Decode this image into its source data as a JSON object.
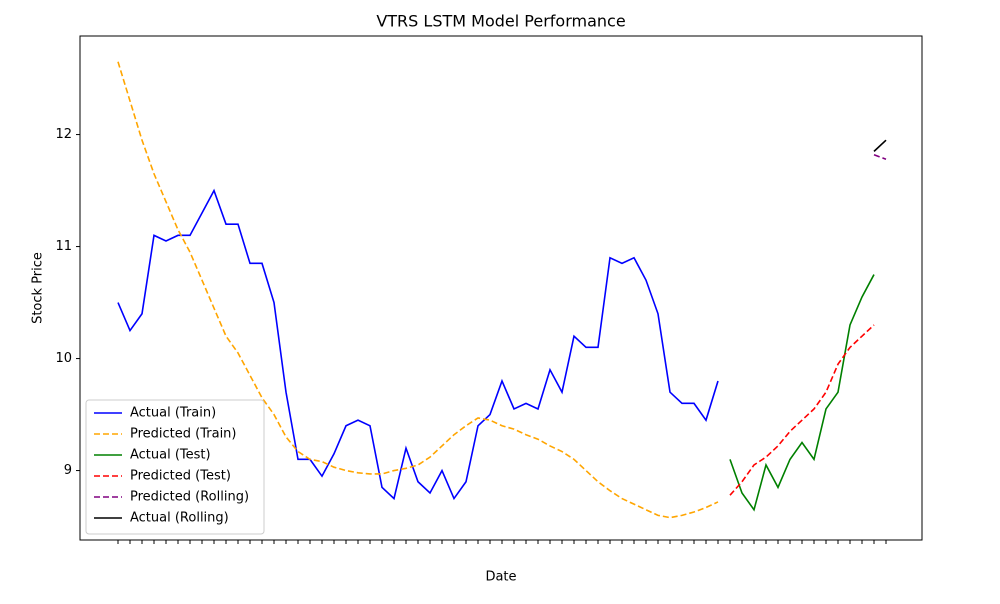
{
  "chart_data": {
    "type": "line",
    "title": "VTRS LSTM Model Performance",
    "x_label": "Date",
    "y_label": "Stock Price",
    "categories": [
      null,
      null,
      null,
      null,
      null,
      null,
      null,
      null,
      null,
      null,
      null,
      null,
      null,
      null,
      null,
      null,
      null,
      null,
      null,
      null,
      null,
      null,
      null,
      null,
      null,
      null,
      null,
      null,
      null,
      null,
      null,
      null,
      null,
      null,
      null,
      null,
      null,
      null,
      null,
      null,
      null,
      null,
      null,
      null,
      null,
      null,
      null,
      null,
      null,
      null,
      null,
      null,
      null,
      null,
      null,
      null,
      null,
      null,
      null,
      null,
      null,
      null,
      null,
      null,
      null
    ],
    "ylim": [
      8.38,
      12.88
    ],
    "yticks": [
      9,
      10,
      11,
      12
    ],
    "legend": "lower left",
    "series": [
      {
        "name": "Actual (Train)",
        "color": "#0000ff",
        "linestyle": "solid",
        "values": [
          10.5,
          10.25,
          10.4,
          11.1,
          11.05,
          11.1,
          11.1,
          11.3,
          11.5,
          11.2,
          11.2,
          10.85,
          10.85,
          10.5,
          9.7,
          9.1,
          9.1,
          8.95,
          9.15,
          9.4,
          9.45,
          9.4,
          8.85,
          8.75,
          9.2,
          8.9,
          8.8,
          9.0,
          8.75,
          8.9,
          9.4,
          9.5,
          9.8,
          9.55,
          9.6,
          9.55,
          9.9,
          9.7,
          10.2,
          10.1,
          10.1,
          10.9,
          10.85,
          10.9,
          10.7,
          10.4,
          9.7,
          9.6,
          9.6,
          9.45,
          9.8,
          null,
          null,
          null,
          null,
          null,
          null,
          null,
          null,
          null,
          null,
          null,
          null,
          null,
          null
        ]
      },
      {
        "name": "Predicted (Train)",
        "color": "#ffa500",
        "linestyle": "dashed",
        "values": [
          12.65,
          12.3,
          11.95,
          11.65,
          11.4,
          11.15,
          10.95,
          10.7,
          10.45,
          10.2,
          10.05,
          9.85,
          9.65,
          9.5,
          9.3,
          9.17,
          9.1,
          9.08,
          9.03,
          9.0,
          8.98,
          8.97,
          8.97,
          9.0,
          9.02,
          9.05,
          9.12,
          9.22,
          9.32,
          9.4,
          9.47,
          9.45,
          9.4,
          9.37,
          9.32,
          9.28,
          9.22,
          9.17,
          9.1,
          9.0,
          8.9,
          8.82,
          8.75,
          8.7,
          8.65,
          8.6,
          8.58,
          8.6,
          8.63,
          8.67,
          8.72,
          null,
          null,
          null,
          null,
          null,
          null,
          null,
          null,
          null,
          null,
          null,
          null,
          null,
          null
        ]
      },
      {
        "name": "Actual (Test)",
        "color": "#008000",
        "linestyle": "solid",
        "values": [
          null,
          null,
          null,
          null,
          null,
          null,
          null,
          null,
          null,
          null,
          null,
          null,
          null,
          null,
          null,
          null,
          null,
          null,
          null,
          null,
          null,
          null,
          null,
          null,
          null,
          null,
          null,
          null,
          null,
          null,
          null,
          null,
          null,
          null,
          null,
          null,
          null,
          null,
          null,
          null,
          null,
          null,
          null,
          null,
          null,
          null,
          null,
          null,
          null,
          null,
          null,
          9.1,
          8.8,
          8.65,
          9.05,
          8.85,
          9.1,
          9.25,
          9.1,
          9.55,
          9.7,
          10.3,
          10.55,
          10.75,
          null
        ]
      },
      {
        "name": "Predicted (Test)",
        "color": "#ff0000",
        "linestyle": "dashed",
        "values": [
          null,
          null,
          null,
          null,
          null,
          null,
          null,
          null,
          null,
          null,
          null,
          null,
          null,
          null,
          null,
          null,
          null,
          null,
          null,
          null,
          null,
          null,
          null,
          null,
          null,
          null,
          null,
          null,
          null,
          null,
          null,
          null,
          null,
          null,
          null,
          null,
          null,
          null,
          null,
          null,
          null,
          null,
          null,
          null,
          null,
          null,
          null,
          null,
          null,
          null,
          null,
          8.78,
          8.9,
          9.05,
          9.12,
          9.22,
          9.35,
          9.45,
          9.55,
          9.7,
          9.95,
          10.1,
          10.2,
          10.3,
          null
        ]
      },
      {
        "name": "Predicted (Rolling)",
        "color": "#800080",
        "linestyle": "dashed",
        "values": [
          null,
          null,
          null,
          null,
          null,
          null,
          null,
          null,
          null,
          null,
          null,
          null,
          null,
          null,
          null,
          null,
          null,
          null,
          null,
          null,
          null,
          null,
          null,
          null,
          null,
          null,
          null,
          null,
          null,
          null,
          null,
          null,
          null,
          null,
          null,
          null,
          null,
          null,
          null,
          null,
          null,
          null,
          null,
          null,
          null,
          null,
          null,
          null,
          null,
          null,
          null,
          null,
          null,
          null,
          null,
          null,
          null,
          null,
          null,
          null,
          null,
          null,
          null,
          11.82,
          11.78
        ]
      },
      {
        "name": "Actual (Rolling)",
        "color": "#000000",
        "linestyle": "solid",
        "values": [
          null,
          null,
          null,
          null,
          null,
          null,
          null,
          null,
          null,
          null,
          null,
          null,
          null,
          null,
          null,
          null,
          null,
          null,
          null,
          null,
          null,
          null,
          null,
          null,
          null,
          null,
          null,
          null,
          null,
          null,
          null,
          null,
          null,
          null,
          null,
          null,
          null,
          null,
          null,
          null,
          null,
          null,
          null,
          null,
          null,
          null,
          null,
          null,
          null,
          null,
          null,
          null,
          null,
          null,
          null,
          null,
          null,
          null,
          null,
          null,
          null,
          null,
          null,
          11.85,
          11.95
        ]
      }
    ]
  }
}
